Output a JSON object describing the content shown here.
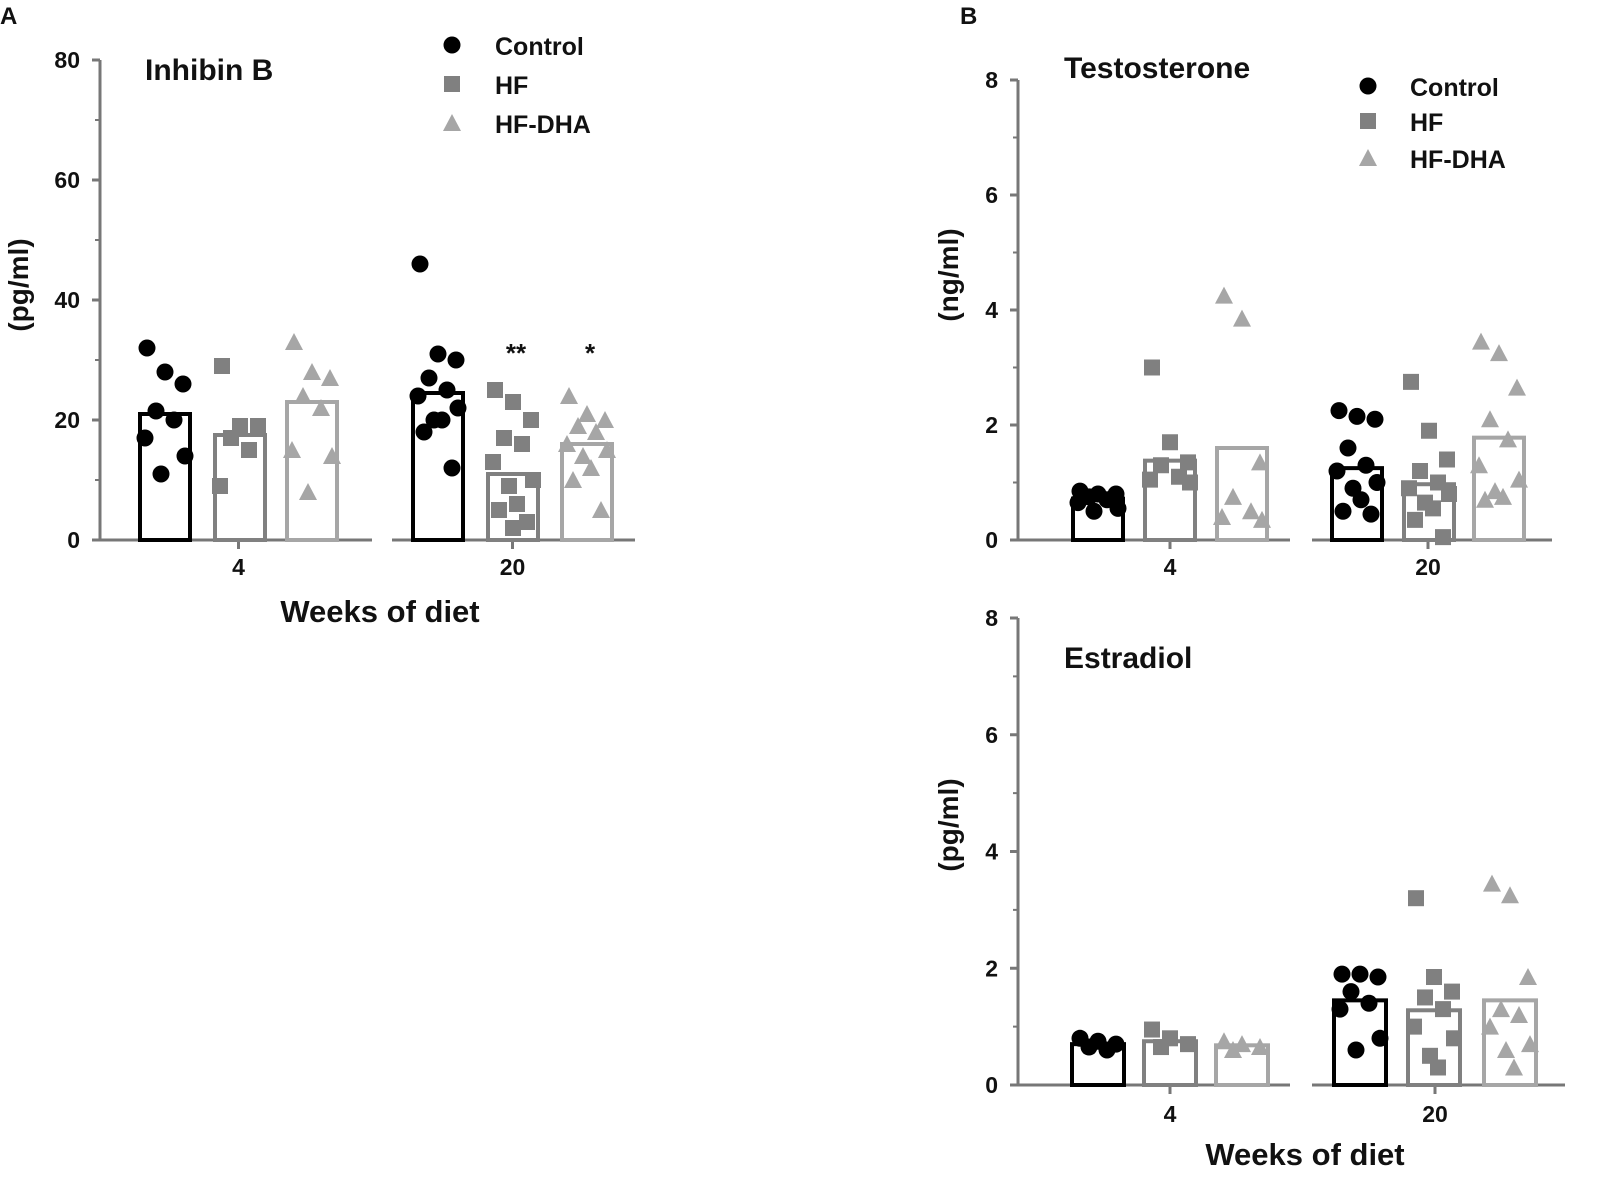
{
  "panels": {
    "a": {
      "letter": "A"
    },
    "b": {
      "letter": "B"
    }
  },
  "colors": {
    "control": "#000000",
    "hf": "#808080",
    "hfdha": "#a6a6a6",
    "axis": "#777777"
  },
  "legend": {
    "control": "Control",
    "hf": "HF",
    "hfdha": "HF-DHA"
  },
  "chart_data": [
    {
      "id": "inhibin",
      "type": "bar",
      "title": "Inhibin B",
      "xlabel": "Weeks of diet",
      "ylabel": "(pg/ml)",
      "ylim": [
        0,
        80
      ],
      "yticks": [
        0,
        20,
        40,
        60,
        80
      ],
      "ytick_labels": [
        "0",
        "20",
        "40",
        "60",
        "80"
      ],
      "legend_position": "top-center",
      "categories": [
        "4",
        "20"
      ],
      "series": [
        {
          "name": "Control",
          "values": [
            21,
            24.5
          ],
          "points": [
            [
              32,
              28,
              26,
              21.5,
              20,
              17,
              14,
              11
            ],
            [
              46,
              31,
              30,
              27,
              25,
              24,
              22,
              20,
              20,
              18,
              12
            ]
          ]
        },
        {
          "name": "HF",
          "values": [
            17.5,
            11
          ],
          "points": [
            [
              29,
              19,
              19,
              17,
              15,
              9
            ],
            [
              25,
              23,
              20,
              17,
              16,
              13,
              10,
              9,
              6,
              5,
              3,
              2
            ]
          ]
        },
        {
          "name": "HF-DHA",
          "values": [
            23,
            16
          ],
          "points": [
            [
              33,
              28,
              27,
              24,
              22,
              15,
              14,
              8
            ],
            [
              24,
              21,
              20,
              19,
              18,
              16,
              15,
              14,
              12,
              10,
              5
            ]
          ]
        }
      ],
      "annotations": [
        {
          "category": "20",
          "series": "HF",
          "text": "**"
        },
        {
          "category": "20",
          "series": "HF-DHA",
          "text": "*"
        }
      ]
    },
    {
      "id": "testosterone",
      "type": "bar",
      "title": "Testosterone",
      "xlabel": "",
      "ylabel": "(ng/ml)",
      "ylim": [
        0,
        8
      ],
      "yticks": [
        0,
        2,
        4,
        6,
        8
      ],
      "ytick_labels": [
        "0",
        "2",
        "4",
        "6",
        "8"
      ],
      "legend_position": "top-right",
      "categories": [
        "4",
        "20"
      ],
      "series": [
        {
          "name": "Control",
          "values": [
            0.72,
            1.25
          ],
          "points": [
            [
              0.85,
              0.8,
              0.8,
              0.75,
              0.7,
              0.65,
              0.55,
              0.5
            ],
            [
              2.25,
              2.15,
              2.1,
              1.6,
              1.3,
              1.2,
              1.0,
              0.9,
              0.7,
              0.5,
              0.45
            ]
          ]
        },
        {
          "name": "HF",
          "values": [
            1.38,
            0.97
          ],
          "points": [
            [
              3.0,
              1.7,
              1.35,
              1.3,
              1.1,
              1.05,
              1.0
            ],
            [
              2.75,
              1.9,
              1.4,
              1.2,
              1.0,
              0.9,
              0.8,
              0.65,
              0.55,
              0.35,
              0.05
            ]
          ]
        },
        {
          "name": "HF-DHA",
          "values": [
            1.6,
            1.78
          ],
          "points": [
            [
              4.25,
              3.85,
              1.35,
              0.75,
              0.5,
              0.4,
              0.35
            ],
            [
              3.45,
              3.25,
              2.65,
              2.1,
              1.75,
              1.3,
              1.05,
              0.85,
              0.75,
              0.7
            ]
          ]
        }
      ]
    },
    {
      "id": "estradiol",
      "type": "bar",
      "title": "Estradiol",
      "xlabel": "Weeks of diet",
      "ylabel": "(pg/ml)",
      "ylim": [
        0,
        8
      ],
      "yticks": [
        0,
        2,
        4,
        6,
        8
      ],
      "ytick_labels": [
        "0",
        "2",
        "4",
        "6",
        "8"
      ],
      "categories": [
        "4",
        "20"
      ],
      "series": [
        {
          "name": "Control",
          "values": [
            0.7,
            1.45
          ],
          "points": [
            [
              0.8,
              0.75,
              0.7,
              0.65,
              0.6
            ],
            [
              1.9,
              1.9,
              1.85,
              1.6,
              1.4,
              1.3,
              0.8,
              0.6
            ]
          ]
        },
        {
          "name": "HF",
          "values": [
            0.75,
            1.28
          ],
          "points": [
            [
              0.95,
              0.8,
              0.7,
              0.65
            ],
            [
              3.2,
              1.85,
              1.6,
              1.5,
              1.3,
              1.0,
              0.8,
              0.5,
              0.3
            ]
          ]
        },
        {
          "name": "HF-DHA",
          "values": [
            0.68,
            1.45
          ],
          "points": [
            [
              0.75,
              0.7,
              0.65,
              0.6
            ],
            [
              3.45,
              3.25,
              1.85,
              1.3,
              1.2,
              1.0,
              0.7,
              0.6,
              0.3
            ]
          ]
        }
      ]
    }
  ]
}
